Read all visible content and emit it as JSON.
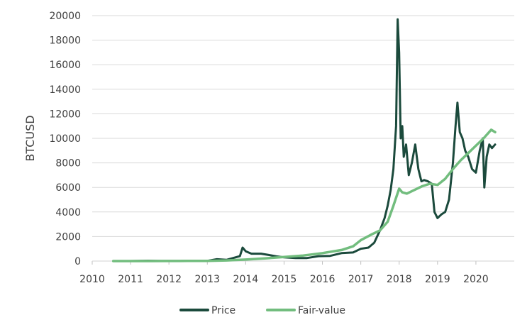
{
  "chart_data": {
    "type": "line",
    "title": "",
    "xlabel": "",
    "ylabel": "BTCUSD",
    "xlim": [
      2010,
      2021
    ],
    "ylim": [
      0,
      20000
    ],
    "x_ticks": [
      "2010",
      "2011",
      "2012",
      "2013",
      "2014",
      "2015",
      "2016",
      "2017",
      "2018",
      "2019",
      "2020"
    ],
    "y_ticks": [
      "0",
      "2000",
      "4000",
      "6000",
      "8000",
      "10000",
      "12000",
      "14000",
      "16000",
      "18000",
      "20000"
    ],
    "grid": "horizontal",
    "legend_position": "bottom",
    "series": [
      {
        "name": "Price",
        "color": "#1b4a3c",
        "x": [
          2010.55,
          2011.0,
          2011.45,
          2011.8,
          2012.5,
          2013.0,
          2013.25,
          2013.5,
          2013.85,
          2013.92,
          2014.0,
          2014.15,
          2014.4,
          2014.6,
          2014.8,
          2015.0,
          2015.3,
          2015.6,
          2015.9,
          2016.2,
          2016.5,
          2016.8,
          2017.0,
          2017.2,
          2017.35,
          2017.5,
          2017.62,
          2017.7,
          2017.78,
          2017.85,
          2017.92,
          2017.96,
          2018.0,
          2018.04,
          2018.08,
          2018.12,
          2018.18,
          2018.25,
          2018.33,
          2018.42,
          2018.5,
          2018.58,
          2018.65,
          2018.75,
          2018.85,
          2018.92,
          2019.0,
          2019.1,
          2019.2,
          2019.3,
          2019.4,
          2019.47,
          2019.52,
          2019.58,
          2019.65,
          2019.72,
          2019.8,
          2019.9,
          2020.0,
          2020.1,
          2020.18,
          2020.22,
          2020.28,
          2020.35,
          2020.42,
          2020.5
        ],
        "values": [
          0,
          0,
          30,
          5,
          10,
          20,
          150,
          100,
          400,
          1100,
          800,
          600,
          600,
          500,
          380,
          300,
          250,
          250,
          400,
          420,
          650,
          700,
          1000,
          1100,
          1500,
          2500,
          3500,
          4500,
          5800,
          7500,
          11000,
          19700,
          17000,
          10000,
          11000,
          8500,
          9500,
          7000,
          8000,
          9500,
          7500,
          6500,
          6600,
          6500,
          6300,
          4000,
          3500,
          3800,
          4000,
          5000,
          8000,
          11000,
          12900,
          10500,
          10000,
          9000,
          8500,
          7500,
          7200,
          9000,
          10000,
          6000,
          8500,
          9500,
          9200,
          9500
        ]
      },
      {
        "name": "Fair-value",
        "color": "#72bd7e",
        "x": [
          2010.55,
          2011.0,
          2011.5,
          2012.0,
          2012.5,
          2013.0,
          2013.5,
          2014.0,
          2014.5,
          2015.0,
          2015.5,
          2016.0,
          2016.5,
          2016.8,
          2017.0,
          2017.3,
          2017.5,
          2017.7,
          2017.85,
          2018.0,
          2018.08,
          2018.2,
          2018.4,
          2018.6,
          2018.8,
          2019.0,
          2019.2,
          2019.4,
          2019.6,
          2019.8,
          2020.0,
          2020.2,
          2020.4,
          2020.5
        ],
        "values": [
          0,
          0,
          0,
          5,
          10,
          20,
          50,
          120,
          220,
          330,
          450,
          650,
          900,
          1200,
          1700,
          2200,
          2500,
          3200,
          4500,
          5900,
          5600,
          5500,
          5800,
          6100,
          6300,
          6200,
          6700,
          7500,
          8200,
          8800,
          9400,
          10000,
          10700,
          10500
        ]
      }
    ]
  }
}
